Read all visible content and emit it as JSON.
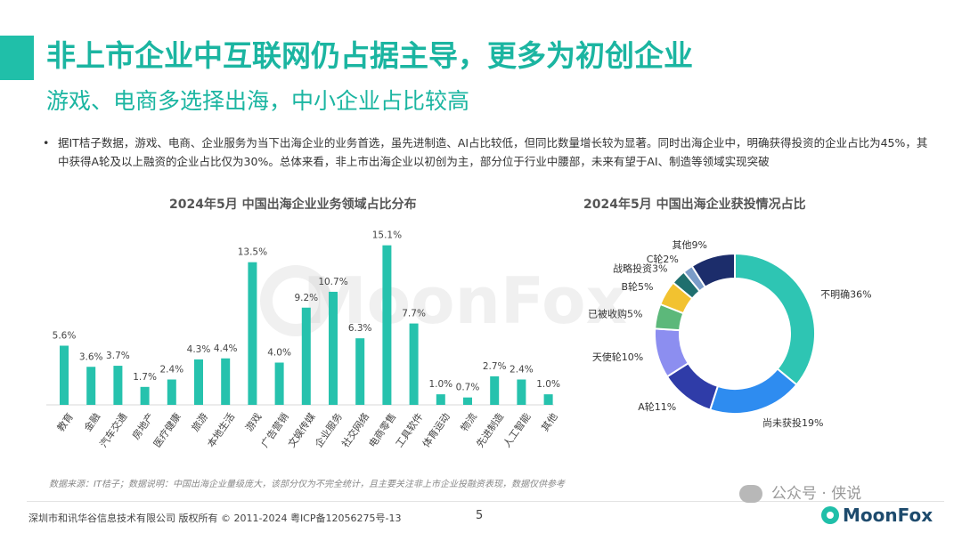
{
  "header": {
    "title": "非上市企业中互联网仍占据主导，更多为初创企业",
    "subtitle": "游戏、电商多选择出海，中小企业占比较高"
  },
  "bullet": {
    "text": "据IT桔子数据，游戏、电商、企业服务为当下出海企业的业务首选，虽先进制造、AI占比较低，但同比数量增长较为显著。同时出海企业中，明确获得投资的企业占比为45%，其中获得A轮及以上融资的企业占比仅为30%。总体来看，非上市出海企业以初创为主，部分位于行业中腰部，未来有望于AI、制造等领域实现突破"
  },
  "watermark": {
    "text": "MoonFox"
  },
  "chart_data": [
    {
      "type": "bar",
      "title": "2024年5月 中国出海企业业务领域占比分布",
      "categories": [
        "教育",
        "金融",
        "汽车交通",
        "房地产",
        "医疗健康",
        "旅游",
        "本地生活",
        "游戏",
        "广告营销",
        "文娱传媒",
        "企业服务",
        "社交网络",
        "电商零售",
        "工具软件",
        "体育运动",
        "物流",
        "先进制造",
        "人工智能",
        "其他"
      ],
      "values": [
        5.6,
        3.6,
        3.7,
        1.7,
        2.4,
        4.3,
        4.4,
        13.5,
        4.0,
        9.2,
        10.7,
        6.3,
        15.1,
        7.7,
        1.0,
        0.7,
        2.7,
        2.4,
        1.0
      ],
      "labels": [
        "5.6%",
        "3.6%",
        "3.7%",
        "1.7%",
        "2.4%",
        "4.3%",
        "4.4%",
        "13.5%",
        "4.0%",
        "9.2%",
        "10.7%",
        "6.3%",
        "15.1%",
        "7.7%",
        "1.0%",
        "0.7%",
        "2.7%",
        "2.4%",
        "1.0%"
      ],
      "unit": "%",
      "ylim": [
        0,
        16
      ],
      "color": "#26c2ad",
      "grid": false
    },
    {
      "type": "pie",
      "title": "2024年5月 中国出海企业获投情况占比",
      "donut": true,
      "slices": [
        {
          "label": "不明确",
          "value": 36,
          "text": "不明确36%",
          "color": "#2ec5b3"
        },
        {
          "label": "尚未获投",
          "value": 19,
          "text": "尚未获投19%",
          "color": "#2e8cf0"
        },
        {
          "label": "A轮",
          "value": 11,
          "text": "A轮11%",
          "color": "#2f3ca8"
        },
        {
          "label": "天使轮",
          "value": 10,
          "text": "天使轮10%",
          "color": "#8c8ef0"
        },
        {
          "label": "已被收购",
          "value": 5,
          "text": "已被收购5%",
          "color": "#5cb87a"
        },
        {
          "label": "B轮",
          "value": 5,
          "text": "B轮5%",
          "color": "#f2c230"
        },
        {
          "label": "战略投资",
          "value": 3,
          "text": "战略投资3%",
          "color": "#1f6f6e"
        },
        {
          "label": "C轮",
          "value": 2,
          "text": "C轮2%",
          "color": "#7a9cc8"
        },
        {
          "label": "其他",
          "value": 9,
          "text": "其他9%",
          "color": "#1c2d6b"
        }
      ]
    }
  ],
  "footer": {
    "note": "数据来源：IT桔子；数据说明：中国出海企业量级庞大，该部分仅为不完全统计，且主要关注非上市企业投融资表现，数据仅供参考",
    "copyright": "深圳市和讯华谷信息技术有限公司 版权所有 © 2011-2024 粤ICP备12056275号-13",
    "page": "5",
    "wechat": "公众号 · 侠说",
    "logo": "MoonFox"
  }
}
